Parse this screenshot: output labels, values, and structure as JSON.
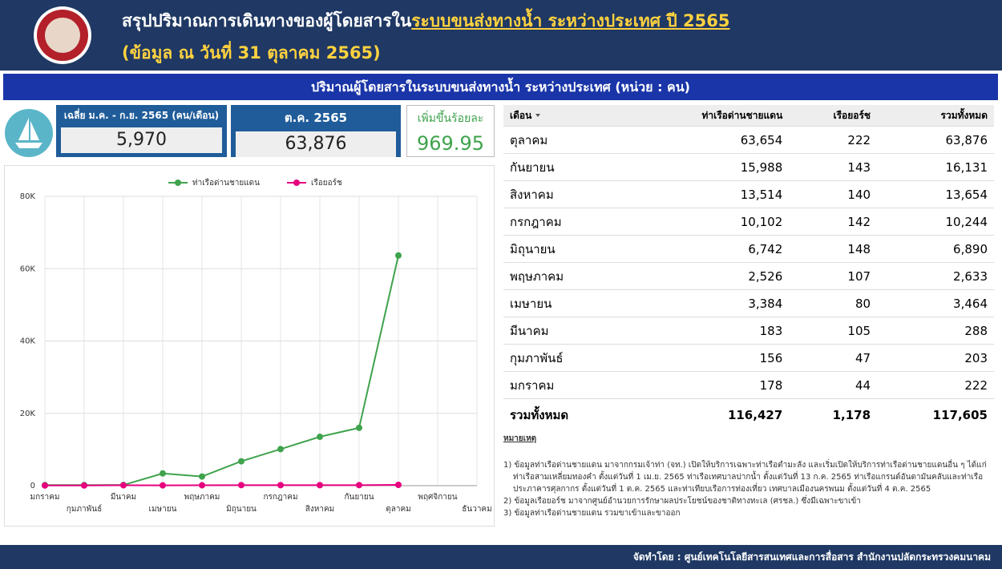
{
  "header": {
    "title_prefix": "สรุปปริมาณการเดินทางของผู้โดยสารใน",
    "title_highlight": "ระบบขนส่งทางน้ำ ระหว่างประเทศ ปี 2565",
    "subtitle": "(ข้อมูล ณ วันที่ 31 ตุลาคม 2565)"
  },
  "banner": "ปริมาณผู้โดยสารในระบบขนส่งทางน้ำ ระหว่างประเทศ (หน่วย : คน)",
  "kpis": [
    {
      "label": "เฉลี่ย ม.ค. - ก.ย. 2565 (คน/เดือน)",
      "value": "5,970"
    },
    {
      "label": "ต.ค. 2565",
      "value": "63,876"
    },
    {
      "label": "เพิ่มขึ้นร้อยละ",
      "value": "969.95"
    }
  ],
  "chart_data": {
    "type": "line",
    "categories": [
      "มกราคม",
      "กุมภาพันธ์",
      "มีนาคม",
      "เมษายน",
      "พฤษภาคม",
      "มิถุนายน",
      "กรกฎาคม",
      "สิงหาคม",
      "กันยายน",
      "ตุลาคม",
      "พฤศจิกายน",
      "ธันวาคม"
    ],
    "series": [
      {
        "name": "ท่าเรือด่านชายแดน",
        "color": "#3fa34d",
        "values": [
          178,
          156,
          183,
          3384,
          2526,
          6742,
          10102,
          13514,
          15988,
          63654,
          null,
          null
        ]
      },
      {
        "name": "เรือยอร์ช",
        "color": "#e6007e",
        "values": [
          44,
          47,
          105,
          80,
          107,
          148,
          142,
          140,
          143,
          222,
          null,
          null
        ]
      }
    ],
    "ylim": [
      0,
      80000
    ],
    "yticks": [
      0,
      {
        "value": 20000,
        "label": "20K"
      },
      {
        "value": 40000,
        "label": "40K"
      },
      {
        "value": 60000,
        "label": "60K"
      },
      {
        "value": 80000,
        "label": "80K"
      }
    ],
    "grid": true,
    "legend": "top"
  },
  "table": {
    "headers": [
      "เดือน",
      "ท่าเรือด่านชายแดน",
      "เรือยอร์ช",
      "รวมทั้งหมด"
    ],
    "rows": [
      [
        "ตุลาคม",
        "63,654",
        "222",
        "63,876"
      ],
      [
        "กันยายน",
        "15,988",
        "143",
        "16,131"
      ],
      [
        "สิงหาคม",
        "13,514",
        "140",
        "13,654"
      ],
      [
        "กรกฎาคม",
        "10,102",
        "142",
        "10,244"
      ],
      [
        "มิถุนายน",
        "6,742",
        "148",
        "6,890"
      ],
      [
        "พฤษภาคม",
        "2,526",
        "107",
        "2,633"
      ],
      [
        "เมษายน",
        "3,384",
        "80",
        "3,464"
      ],
      [
        "มีนาคม",
        "183",
        "105",
        "288"
      ],
      [
        "กุมภาพันธ์",
        "156",
        "47",
        "203"
      ],
      [
        "มกราคม",
        "178",
        "44",
        "222"
      ]
    ],
    "total": [
      "รวมทั้งหมด",
      "116,427",
      "1,178",
      "117,605"
    ]
  },
  "notes": {
    "title": "หมายเหตุ",
    "items": [
      "1) ข้อมูลท่าเรือด่านชายแดน มาจากกรมเจ้าท่า (จท.) เปิดให้บริการเฉพาะท่าเรือตำมะลัง และเริ่มเปิดให้บริการท่าเรือด่านชายแดนอื่น ๆ ได้แก่ ท่าเรือสามเหลี่ยมทองคำ ตั้งแต่วันที่ 1 เม.ย. 2565 ท่าเรือเทศบาลปากน้ำ ตั้งแต่วันที่ 13 ก.ค. 2565 ท่าเรือแกรนด์อันดามันคลับและท่าเรือประภาคารศุลกากร ตั้งแต่วันที่ 1 ต.ค. 2565 และท่าเทียบเรือการท่องเที่ยว เทศบาลเมืองนครพนม ตั้งแต่วันที่ 4 ต.ค. 2565",
      "2) ข้อมูลเรือยอร์ช มาจากศูนย์อำนวยการรักษาผลประโยชน์ของชาติทางทะเล (ศรชล.) ซึ่งมีเฉพาะขาเข้า",
      "3) ข้อมูลท่าเรือด่านชายแดน รวมขาเข้าและขาออก"
    ]
  },
  "footer": "จัดทำโดย : ศูนย์เทคโนโลยีสารสนเทศและการสื่อสาร สำนักงานปลัดกระทรวงคมนาคม"
}
